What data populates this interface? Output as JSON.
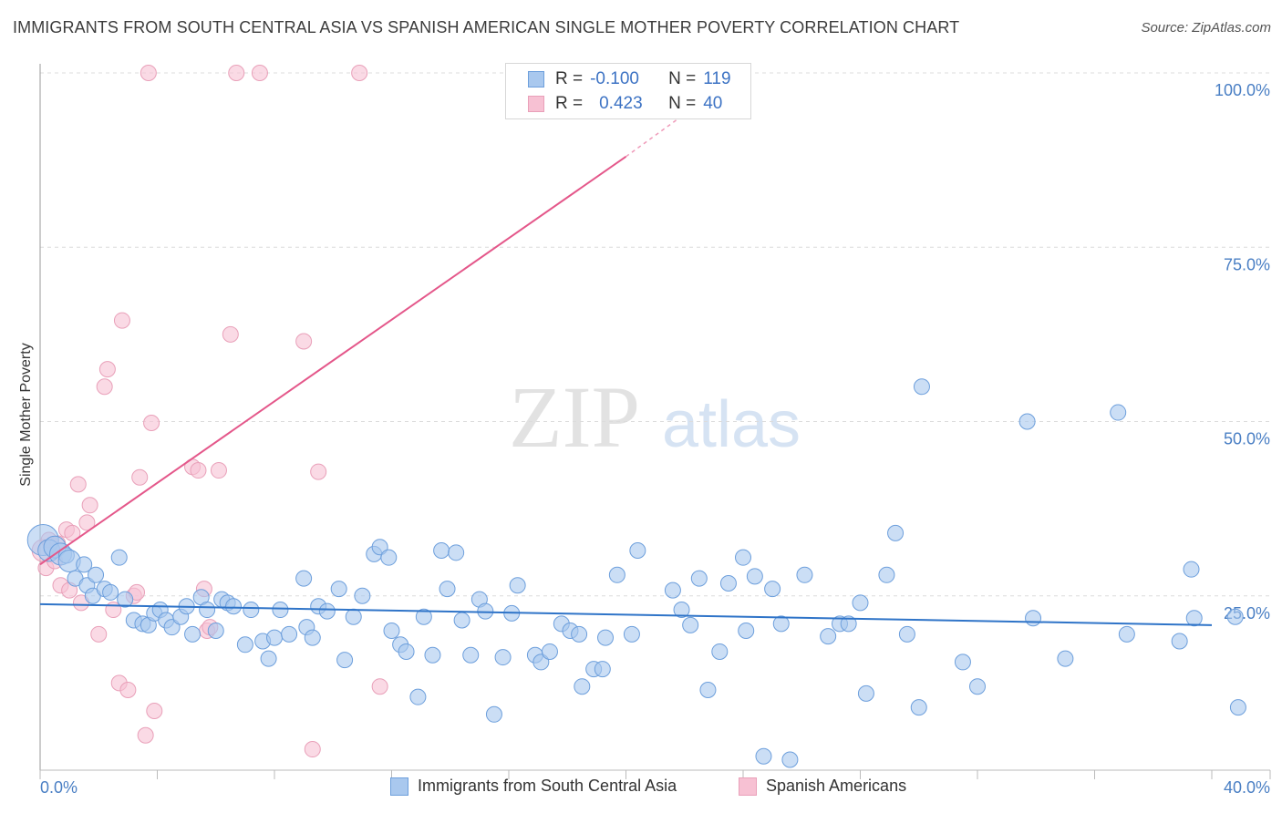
{
  "title": "IMMIGRANTS FROM SOUTH CENTRAL ASIA VS SPANISH AMERICAN SINGLE MOTHER POVERTY CORRELATION CHART",
  "source": "Source: ZipAtlas.com",
  "watermark": {
    "zip": "ZIP",
    "atlas": "atlas"
  },
  "legend": {
    "series1": {
      "r_label": "R =",
      "r_value": "-0.100",
      "n_label": "N =",
      "n_value": "119"
    },
    "series2": {
      "r_label": "R =",
      "r_value": "0.423",
      "n_label": "N =",
      "n_value": "40"
    }
  },
  "bottom_legend": {
    "series1": "Immigrants from South Central Asia",
    "series2": "Spanish Americans"
  },
  "colors": {
    "blue_fill": "#a9c8ee",
    "blue_stroke": "#6d9fdc",
    "blue_line": "#2f74c8",
    "pink_fill": "#f7c1d3",
    "pink_stroke": "#e9a0b9",
    "pink_line": "#e4578a",
    "tick": "#4a7fc4",
    "grid": "#dcdcdc"
  },
  "chart_data": {
    "type": "scatter",
    "title": "IMMIGRANTS FROM SOUTH CENTRAL ASIA VS SPANISH AMERICAN SINGLE MOTHER POVERTY CORRELATION CHART",
    "xlabel": "",
    "ylabel": "Single Mother Poverty",
    "xlim": [
      0,
      40
    ],
    "ylim": [
      0,
      100
    ],
    "x_tick_labels": [
      "0.0%",
      "40.0%"
    ],
    "y_tick_labels": [
      "25.0%",
      "50.0%",
      "75.0%",
      "100.0%"
    ],
    "y_ticks": [
      25,
      50,
      75,
      100
    ],
    "series": [
      {
        "name": "Immigrants from South Central Asia",
        "color": "#a9c8ee",
        "trend": {
          "x": [
            0,
            40
          ],
          "y": [
            23.8,
            20.8
          ]
        },
        "points": [
          {
            "x": 0.1,
            "y": 33.0,
            "s": 3
          },
          {
            "x": 0.3,
            "y": 31.5,
            "s": 2
          },
          {
            "x": 0.5,
            "y": 32.0,
            "s": 2
          },
          {
            "x": 0.7,
            "y": 31.0,
            "s": 2
          },
          {
            "x": 0.9,
            "y": 30.8,
            "s": 1
          },
          {
            "x": 1.0,
            "y": 30.0,
            "s": 2
          },
          {
            "x": 1.2,
            "y": 27.5,
            "s": 1
          },
          {
            "x": 1.5,
            "y": 29.5,
            "s": 1
          },
          {
            "x": 1.6,
            "y": 26.5,
            "s": 1
          },
          {
            "x": 1.8,
            "y": 25.0,
            "s": 1
          },
          {
            "x": 1.9,
            "y": 28.0,
            "s": 1
          },
          {
            "x": 2.2,
            "y": 26.0,
            "s": 1
          },
          {
            "x": 2.4,
            "y": 25.5,
            "s": 1
          },
          {
            "x": 2.7,
            "y": 30.5,
            "s": 1
          },
          {
            "x": 2.9,
            "y": 24.5,
            "s": 1
          },
          {
            "x": 3.2,
            "y": 21.5,
            "s": 1
          },
          {
            "x": 3.5,
            "y": 21.0,
            "s": 1
          },
          {
            "x": 3.7,
            "y": 20.8,
            "s": 1
          },
          {
            "x": 3.9,
            "y": 22.5,
            "s": 1
          },
          {
            "x": 4.1,
            "y": 23.0,
            "s": 1
          },
          {
            "x": 4.3,
            "y": 21.5,
            "s": 1
          },
          {
            "x": 4.5,
            "y": 20.5,
            "s": 1
          },
          {
            "x": 4.8,
            "y": 22.0,
            "s": 1
          },
          {
            "x": 5.0,
            "y": 23.5,
            "s": 1
          },
          {
            "x": 5.2,
            "y": 19.5,
            "s": 1
          },
          {
            "x": 5.5,
            "y": 24.8,
            "s": 1
          },
          {
            "x": 5.7,
            "y": 23.0,
            "s": 1
          },
          {
            "x": 6.0,
            "y": 20.0,
            "s": 1
          },
          {
            "x": 6.2,
            "y": 24.5,
            "s": 1
          },
          {
            "x": 6.4,
            "y": 24.0,
            "s": 1
          },
          {
            "x": 6.6,
            "y": 23.5,
            "s": 1
          },
          {
            "x": 7.0,
            "y": 18.0,
            "s": 1
          },
          {
            "x": 7.2,
            "y": 23.0,
            "s": 1
          },
          {
            "x": 7.6,
            "y": 18.5,
            "s": 1
          },
          {
            "x": 7.8,
            "y": 16.0,
            "s": 1
          },
          {
            "x": 8.0,
            "y": 19.0,
            "s": 1
          },
          {
            "x": 8.2,
            "y": 23.0,
            "s": 1
          },
          {
            "x": 8.5,
            "y": 19.5,
            "s": 1
          },
          {
            "x": 9.0,
            "y": 27.5,
            "s": 1
          },
          {
            "x": 9.1,
            "y": 20.5,
            "s": 1
          },
          {
            "x": 9.3,
            "y": 19.0,
            "s": 1
          },
          {
            "x": 9.5,
            "y": 23.5,
            "s": 1
          },
          {
            "x": 9.8,
            "y": 22.8,
            "s": 1
          },
          {
            "x": 10.2,
            "y": 26.0,
            "s": 1
          },
          {
            "x": 10.4,
            "y": 15.8,
            "s": 1
          },
          {
            "x": 10.7,
            "y": 22.0,
            "s": 1
          },
          {
            "x": 11.0,
            "y": 25.0,
            "s": 1
          },
          {
            "x": 11.4,
            "y": 31.0,
            "s": 1
          },
          {
            "x": 11.6,
            "y": 32.0,
            "s": 1
          },
          {
            "x": 11.9,
            "y": 30.5,
            "s": 1
          },
          {
            "x": 12.0,
            "y": 20.0,
            "s": 1
          },
          {
            "x": 12.3,
            "y": 18.0,
            "s": 1
          },
          {
            "x": 12.5,
            "y": 17.0,
            "s": 1
          },
          {
            "x": 12.9,
            "y": 10.5,
            "s": 1
          },
          {
            "x": 13.1,
            "y": 22.0,
            "s": 1
          },
          {
            "x": 13.4,
            "y": 16.5,
            "s": 1
          },
          {
            "x": 13.7,
            "y": 31.5,
            "s": 1
          },
          {
            "x": 13.9,
            "y": 26.0,
            "s": 1
          },
          {
            "x": 14.2,
            "y": 31.2,
            "s": 1
          },
          {
            "x": 14.4,
            "y": 21.5,
            "s": 1
          },
          {
            "x": 14.7,
            "y": 16.5,
            "s": 1
          },
          {
            "x": 15.0,
            "y": 24.5,
            "s": 1
          },
          {
            "x": 15.2,
            "y": 22.8,
            "s": 1
          },
          {
            "x": 15.5,
            "y": 8.0,
            "s": 1
          },
          {
            "x": 15.8,
            "y": 16.2,
            "s": 1
          },
          {
            "x": 16.1,
            "y": 22.5,
            "s": 1
          },
          {
            "x": 16.3,
            "y": 26.5,
            "s": 1
          },
          {
            "x": 16.9,
            "y": 16.5,
            "s": 1
          },
          {
            "x": 17.1,
            "y": 15.5,
            "s": 1
          },
          {
            "x": 17.4,
            "y": 17.0,
            "s": 1
          },
          {
            "x": 17.8,
            "y": 21.0,
            "s": 1
          },
          {
            "x": 18.1,
            "y": 20.0,
            "s": 1
          },
          {
            "x": 18.4,
            "y": 19.5,
            "s": 1
          },
          {
            "x": 18.5,
            "y": 12.0,
            "s": 1
          },
          {
            "x": 18.9,
            "y": 14.5,
            "s": 1
          },
          {
            "x": 19.2,
            "y": 14.5,
            "s": 1
          },
          {
            "x": 19.3,
            "y": 19.0,
            "s": 1
          },
          {
            "x": 19.7,
            "y": 28.0,
            "s": 1
          },
          {
            "x": 20.2,
            "y": 19.5,
            "s": 1
          },
          {
            "x": 20.4,
            "y": 31.5,
            "s": 1
          },
          {
            "x": 21.6,
            "y": 25.8,
            "s": 1
          },
          {
            "x": 21.9,
            "y": 23.0,
            "s": 1
          },
          {
            "x": 22.2,
            "y": 20.8,
            "s": 1
          },
          {
            "x": 22.5,
            "y": 27.5,
            "s": 1
          },
          {
            "x": 22.8,
            "y": 11.5,
            "s": 1
          },
          {
            "x": 23.2,
            "y": 17.0,
            "s": 1
          },
          {
            "x": 23.5,
            "y": 26.8,
            "s": 1
          },
          {
            "x": 24.0,
            "y": 30.5,
            "s": 1
          },
          {
            "x": 24.1,
            "y": 20.0,
            "s": 1
          },
          {
            "x": 24.4,
            "y": 27.8,
            "s": 1
          },
          {
            "x": 24.7,
            "y": 2.0,
            "s": 1
          },
          {
            "x": 25.0,
            "y": 26.0,
            "s": 1
          },
          {
            "x": 25.3,
            "y": 21.0,
            "s": 1
          },
          {
            "x": 25.6,
            "y": 1.5,
            "s": 1
          },
          {
            "x": 26.1,
            "y": 28.0,
            "s": 1
          },
          {
            "x": 26.9,
            "y": 19.2,
            "s": 1
          },
          {
            "x": 27.3,
            "y": 21.0,
            "s": 1
          },
          {
            "x": 27.6,
            "y": 21.0,
            "s": 1
          },
          {
            "x": 28.0,
            "y": 24.0,
            "s": 1
          },
          {
            "x": 28.2,
            "y": 11.0,
            "s": 1
          },
          {
            "x": 28.9,
            "y": 28.0,
            "s": 1
          },
          {
            "x": 29.2,
            "y": 34.0,
            "s": 1
          },
          {
            "x": 29.6,
            "y": 19.5,
            "s": 1
          },
          {
            "x": 30.0,
            "y": 9.0,
            "s": 1
          },
          {
            "x": 30.1,
            "y": 55.0,
            "s": 1
          },
          {
            "x": 31.5,
            "y": 15.5,
            "s": 1
          },
          {
            "x": 32.0,
            "y": 12.0,
            "s": 1
          },
          {
            "x": 33.9,
            "y": 21.8,
            "s": 1
          },
          {
            "x": 33.7,
            "y": 50.0,
            "s": 1
          },
          {
            "x": 35.0,
            "y": 16.0,
            "s": 1
          },
          {
            "x": 36.8,
            "y": 51.3,
            "s": 1
          },
          {
            "x": 37.1,
            "y": 19.5,
            "s": 1
          },
          {
            "x": 38.9,
            "y": 18.5,
            "s": 1
          },
          {
            "x": 39.3,
            "y": 28.8,
            "s": 1
          },
          {
            "x": 39.4,
            "y": 21.8,
            "s": 1
          },
          {
            "x": 40.8,
            "y": 22.0,
            "s": 1
          },
          {
            "x": 40.9,
            "y": 9.0,
            "s": 1
          }
        ]
      },
      {
        "name": "Spanish Americans",
        "color": "#f7c1d3",
        "trend": {
          "x": [
            0,
            20.0
          ],
          "y": [
            29.5,
            88.0
          ],
          "dashed_to": {
            "x": 22.3,
            "y": 95.0
          }
        },
        "points": [
          {
            "x": 0.1,
            "y": 31.5,
            "s": 2
          },
          {
            "x": 0.2,
            "y": 29.0,
            "s": 1
          },
          {
            "x": 0.3,
            "y": 33.0,
            "s": 1
          },
          {
            "x": 0.5,
            "y": 30.0,
            "s": 1
          },
          {
            "x": 0.6,
            "y": 32.5,
            "s": 1
          },
          {
            "x": 0.7,
            "y": 26.5,
            "s": 1
          },
          {
            "x": 0.9,
            "y": 34.5,
            "s": 1
          },
          {
            "x": 1.0,
            "y": 25.8,
            "s": 1
          },
          {
            "x": 1.1,
            "y": 34.0,
            "s": 1
          },
          {
            "x": 1.4,
            "y": 24.0,
            "s": 1
          },
          {
            "x": 1.6,
            "y": 35.5,
            "s": 1
          },
          {
            "x": 1.7,
            "y": 38.0,
            "s": 1
          },
          {
            "x": 1.3,
            "y": 41.0,
            "s": 1
          },
          {
            "x": 2.0,
            "y": 19.5,
            "s": 1
          },
          {
            "x": 2.2,
            "y": 55.0,
            "s": 1
          },
          {
            "x": 2.3,
            "y": 57.5,
            "s": 1
          },
          {
            "x": 2.5,
            "y": 23.0,
            "s": 1
          },
          {
            "x": 2.7,
            "y": 12.5,
            "s": 1
          },
          {
            "x": 2.8,
            "y": 64.5,
            "s": 1
          },
          {
            "x": 3.0,
            "y": 11.5,
            "s": 1
          },
          {
            "x": 3.2,
            "y": 25.0,
            "s": 1
          },
          {
            "x": 3.3,
            "y": 25.5,
            "s": 1
          },
          {
            "x": 3.4,
            "y": 42.0,
            "s": 1
          },
          {
            "x": 3.6,
            "y": 5.0,
            "s": 1
          },
          {
            "x": 3.7,
            "y": 100.0,
            "s": 1
          },
          {
            "x": 3.8,
            "y": 49.8,
            "s": 1
          },
          {
            "x": 3.9,
            "y": 8.5,
            "s": 1
          },
          {
            "x": 5.2,
            "y": 43.5,
            "s": 1
          },
          {
            "x": 5.4,
            "y": 43.0,
            "s": 1
          },
          {
            "x": 5.6,
            "y": 26.0,
            "s": 1
          },
          {
            "x": 5.7,
            "y": 20.0,
            "s": 1
          },
          {
            "x": 5.8,
            "y": 20.5,
            "s": 1
          },
          {
            "x": 6.1,
            "y": 43.0,
            "s": 1
          },
          {
            "x": 6.5,
            "y": 62.5,
            "s": 1
          },
          {
            "x": 6.7,
            "y": 100.0,
            "s": 1
          },
          {
            "x": 7.5,
            "y": 100.0,
            "s": 1
          },
          {
            "x": 9.0,
            "y": 61.5,
            "s": 1
          },
          {
            "x": 9.3,
            "y": 3.0,
            "s": 1
          },
          {
            "x": 9.5,
            "y": 42.8,
            "s": 1
          },
          {
            "x": 10.9,
            "y": 100.0,
            "s": 1
          },
          {
            "x": 11.6,
            "y": 12.0,
            "s": 1
          }
        ]
      }
    ]
  }
}
